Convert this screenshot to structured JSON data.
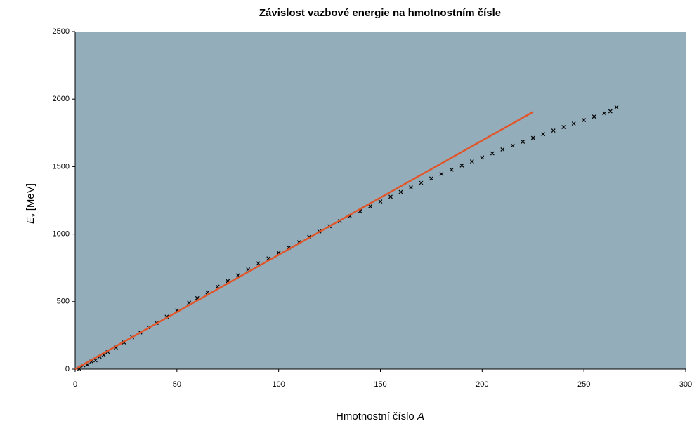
{
  "chart_data": {
    "type": "scatter",
    "title": "Závislost vazbové energie na hmotnostním čísle",
    "xlabel": {
      "text": "Hmotnostní číslo",
      "italic": "A"
    },
    "ylabel": {
      "main": "E",
      "sub": "v",
      "rest": "[MeV]"
    },
    "xlim": [
      0,
      300
    ],
    "xticks": [
      0,
      50,
      100,
      150,
      200,
      250,
      300
    ],
    "ylim": [
      0,
      2500
    ],
    "yticks": [
      0,
      500,
      1000,
      1500,
      2000,
      2500
    ],
    "background": "#93adba",
    "series": [
      {
        "type": "scatter",
        "color": "#000000",
        "x": [
          2,
          4,
          6,
          8,
          10,
          12,
          14,
          16,
          20,
          24,
          28,
          32,
          36,
          40,
          45,
          50,
          56,
          60,
          65,
          70,
          75,
          80,
          85,
          90,
          95,
          100,
          105,
          110,
          115,
          120,
          125,
          130,
          135,
          140,
          145,
          150,
          155,
          160,
          165,
          170,
          175,
          180,
          185,
          190,
          195,
          200,
          205,
          210,
          215,
          220,
          225,
          230,
          235,
          240,
          245,
          250,
          255,
          260,
          263,
          266
        ],
        "values": [
          2,
          28,
          32,
          56,
          65,
          92,
          105,
          128,
          160,
          198,
          236,
          271,
          308,
          342,
          388,
          434,
          492,
          526,
          568,
          611,
          652,
          695,
          738,
          783,
          820,
          862,
          900,
          940,
          980,
          1020,
          1058,
          1096,
          1133,
          1170,
          1206,
          1242,
          1277,
          1312,
          1346,
          1380,
          1412,
          1445,
          1477,
          1508,
          1538,
          1568,
          1598,
          1627,
          1656,
          1684,
          1712,
          1740,
          1767,
          1793,
          1819,
          1845,
          1870,
          1895,
          1910,
          1940
        ]
      },
      {
        "type": "line",
        "color": "#e0562a",
        "x": [
          0,
          225
        ],
        "values": [
          0,
          1905
        ]
      }
    ]
  }
}
